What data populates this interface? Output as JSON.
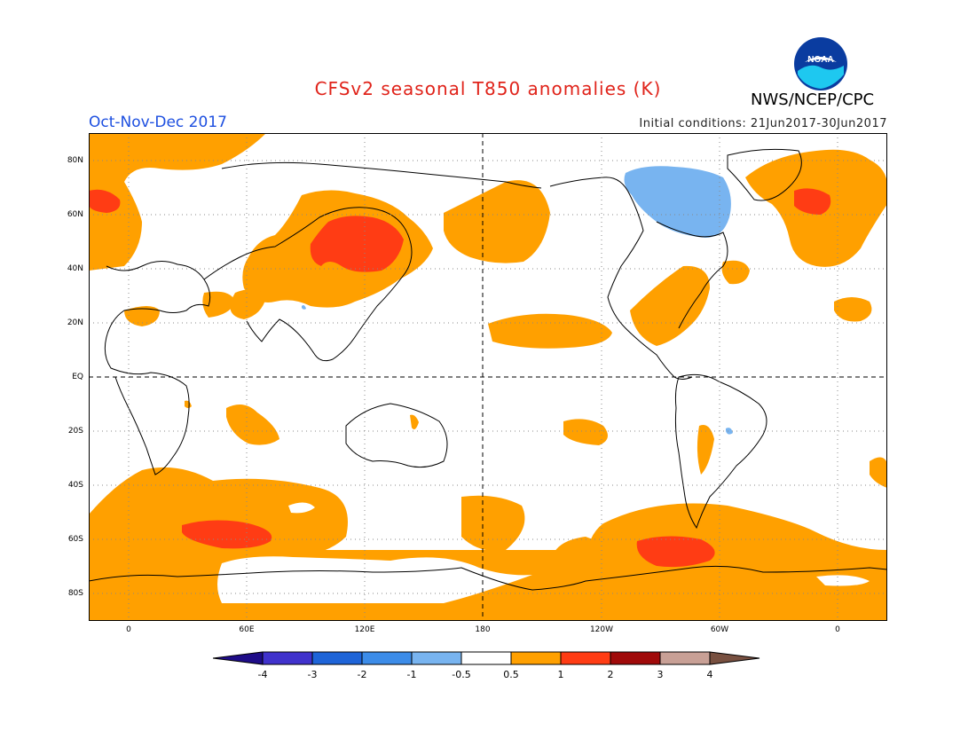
{
  "header": {
    "title": "CFSv2 seasonal T850 anomalies (K)",
    "agency": "NWS/NCEP/CPC",
    "period": "Oct-Nov-Dec 2017",
    "initial_conditions": "Initial conditions: 21Jun2017-30Jun2017"
  },
  "logo": {
    "text": "NOAA"
  },
  "axes": {
    "lat_labels": [
      "80N",
      "60N",
      "40N",
      "20N",
      "EQ",
      "20S",
      "40S",
      "60S",
      "80S"
    ],
    "lon_labels": [
      "0",
      "60E",
      "120E",
      "180",
      "120W",
      "60W",
      "0"
    ]
  },
  "colorbar": {
    "labels": [
      "-4",
      "-3",
      "-2",
      "-1",
      "-0.5",
      "0.5",
      "1",
      "2",
      "3",
      "4"
    ],
    "colors": [
      "#1e0c88",
      "#4032cc",
      "#1e64d8",
      "#3c8ce8",
      "#78b4f0",
      "#ffffff",
      "#ffa000",
      "#ff3c14",
      "#a00a0a",
      "#c8a096",
      "#785040"
    ]
  },
  "anomaly_colors": {
    "warm_0_5_to_1": "#ffa000",
    "warm_1_to_2": "#ff3c14",
    "cool_neg1_to_neg0_5": "#78b4f0"
  }
}
